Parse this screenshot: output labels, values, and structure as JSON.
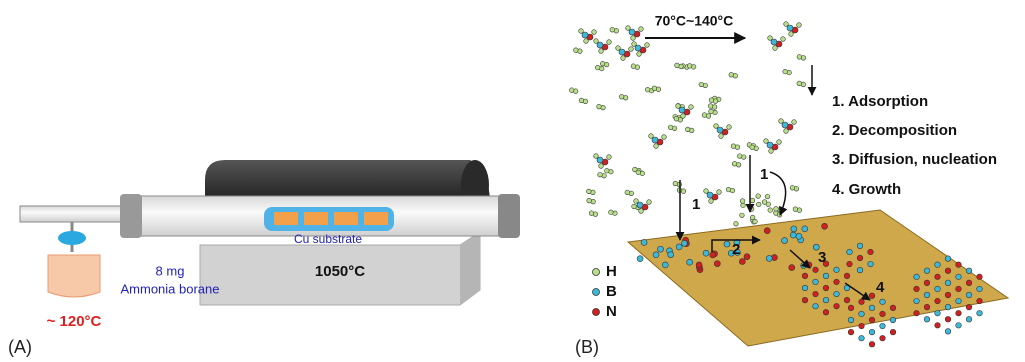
{
  "panel_a": {
    "label": "(A)",
    "source_temperature": "~ 120°C",
    "amount": "8 mg",
    "precursor": "Ammonia borane",
    "substrate": "Cu substrate",
    "furnace_temperature": "1050°C"
  },
  "panel_b": {
    "label": "(B)",
    "heating": "70°C~140°C",
    "steps": [
      "1. Adsorption",
      "2. Decomposition",
      "3. Diffusion, nucleation",
      "4. Growth"
    ],
    "diagram_steps": [
      "1",
      "1",
      "2",
      "3",
      "4"
    ],
    "legend": [
      "H",
      "B",
      "N"
    ]
  }
}
